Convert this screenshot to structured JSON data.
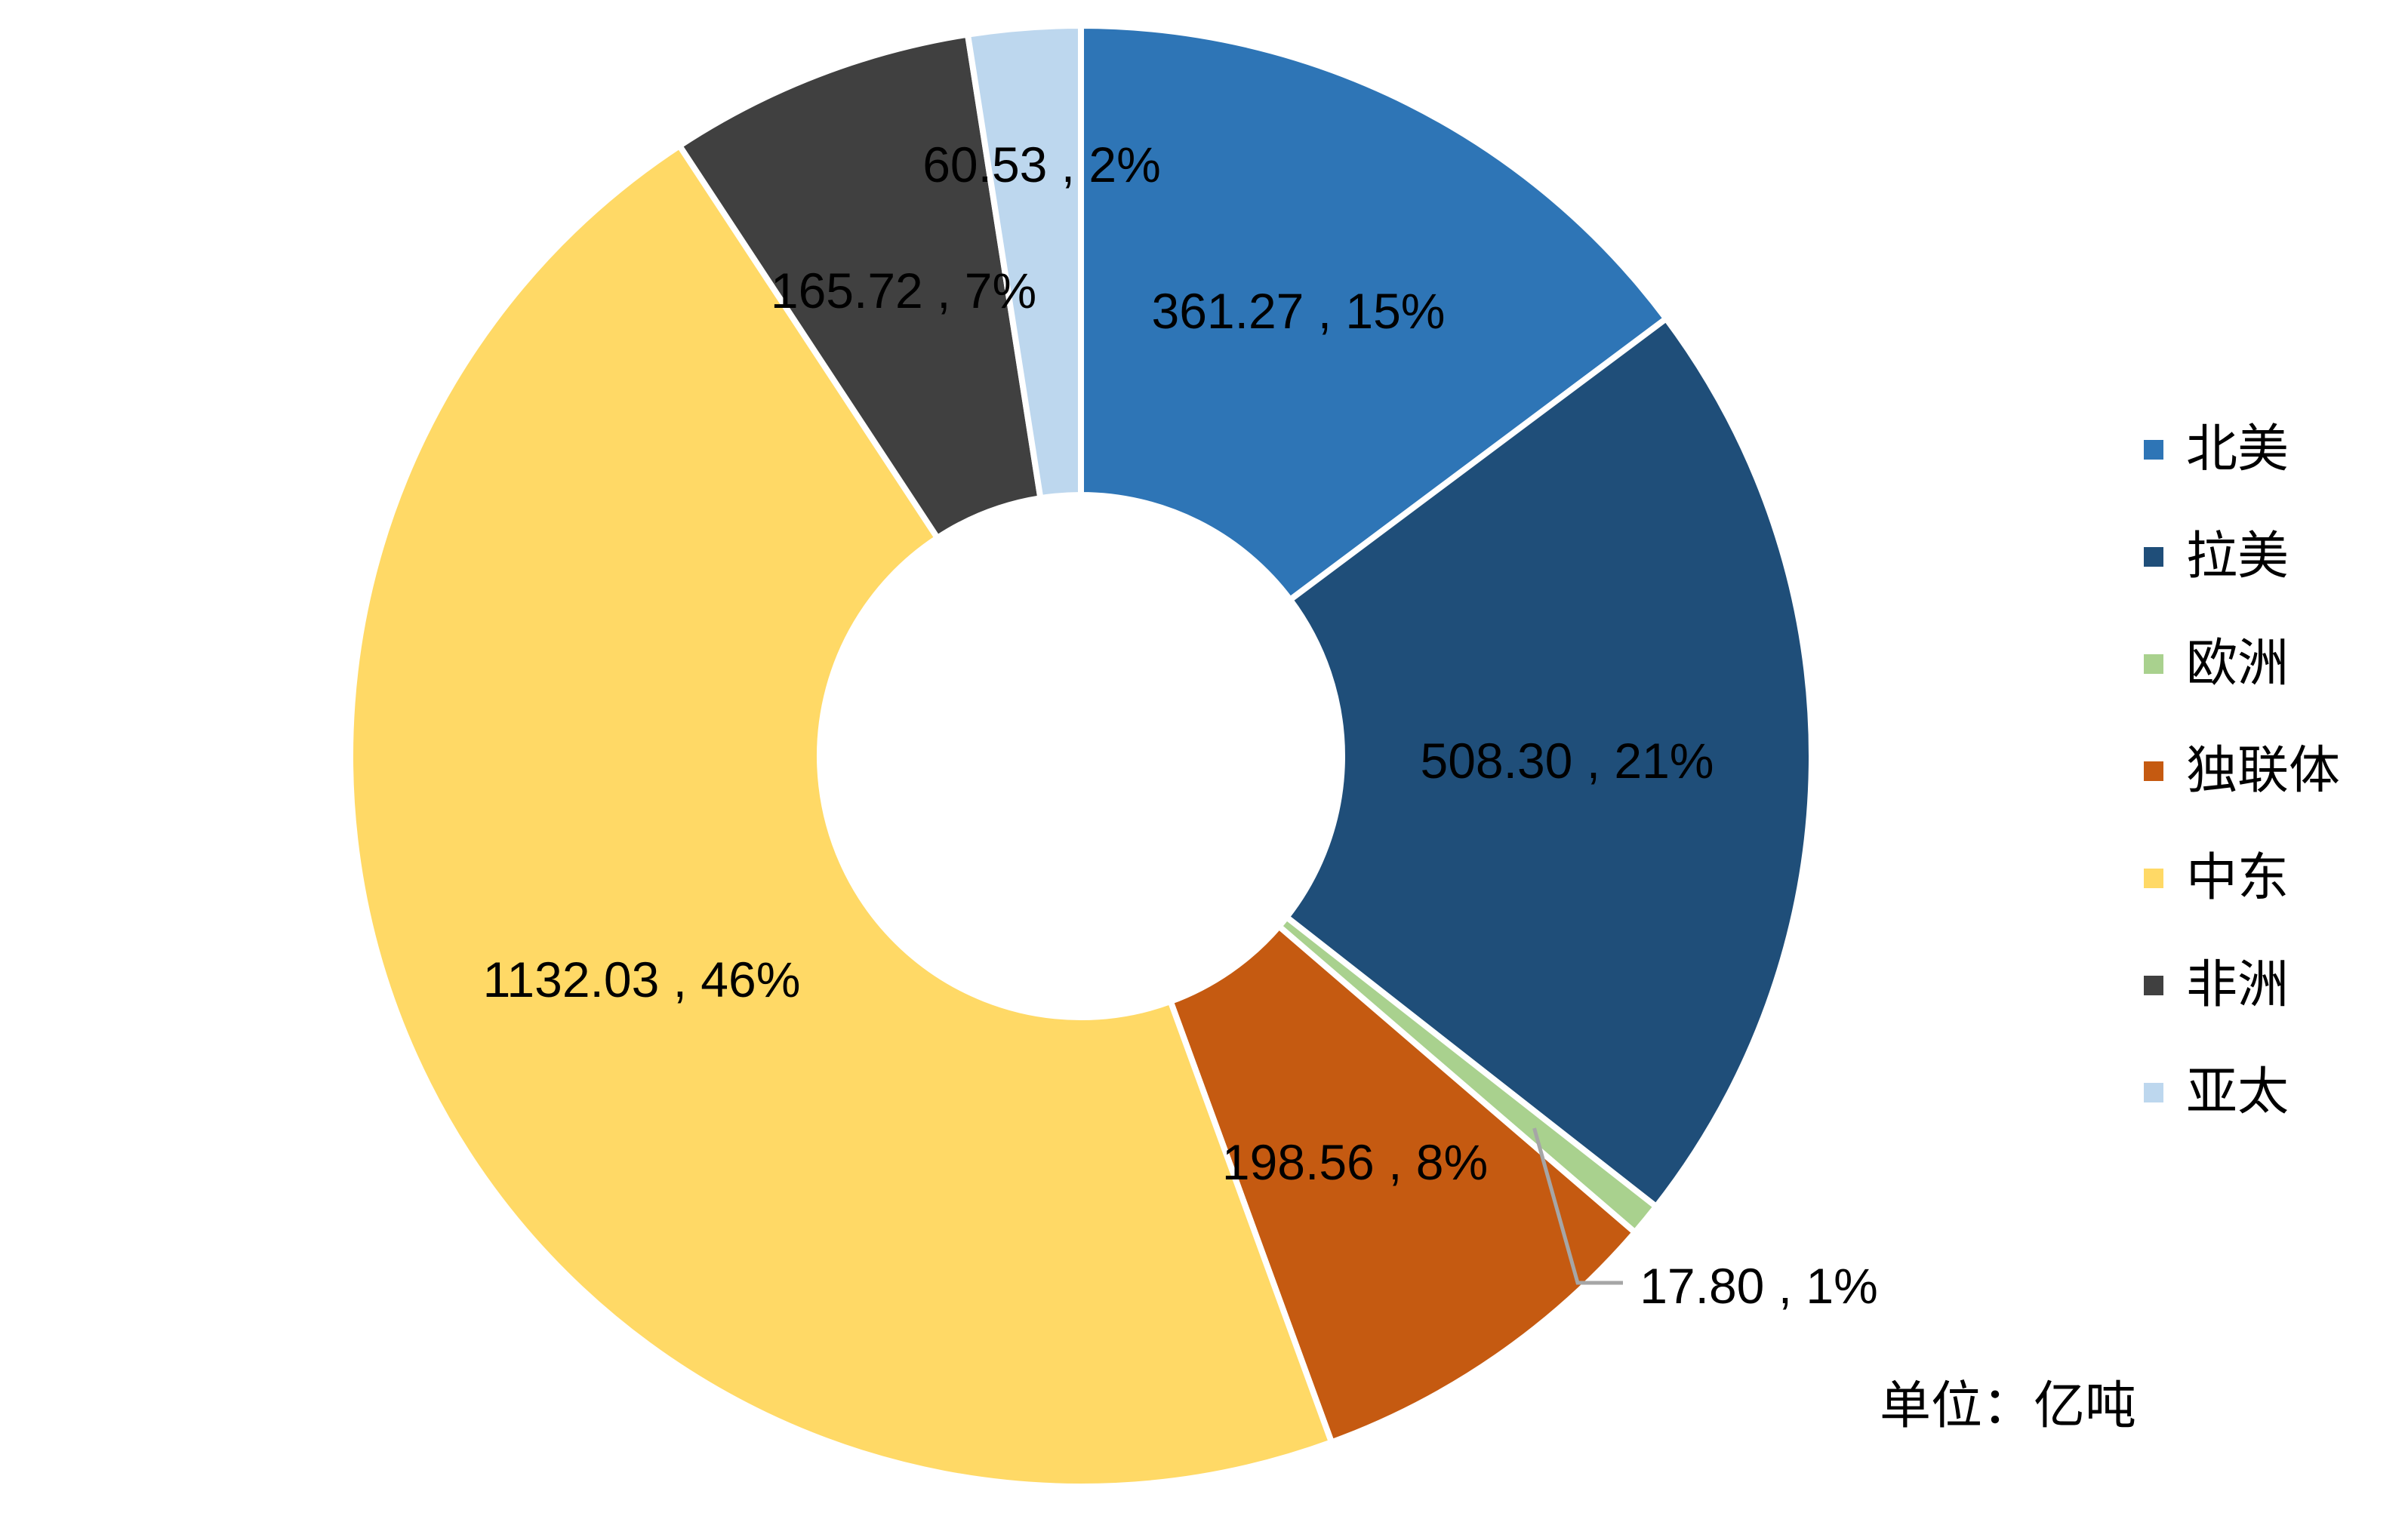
{
  "chart_data": {
    "type": "pie",
    "variant": "donut",
    "title": "",
    "categories": [
      "北美",
      "拉美",
      "欧洲",
      "独联体",
      "中东",
      "非洲",
      "亚太"
    ],
    "values": [
      361.27,
      508.3,
      17.8,
      198.56,
      1132.03,
      165.72,
      60.53
    ],
    "percent_labels": [
      "15%",
      "21%",
      "1%",
      "8%",
      "46%",
      "7%",
      "2%"
    ],
    "data_labels": [
      "361.27 , 15%",
      "508.30 , 21%",
      "17.80 , 1%",
      "198.56 , 8%",
      "1132.03 , 46%",
      "165.72 , 7%",
      "60.53 , 2%"
    ],
    "colors": [
      "#2e75b6",
      "#1f4e79",
      "#a9d18e",
      "#c55a11",
      "#ffd966",
      "#404040",
      "#bdd7ee"
    ],
    "legend_position": "right",
    "unit_note": "单位：亿吨"
  },
  "legend": {
    "items": [
      {
        "label": "北美",
        "color": "#2e75b6"
      },
      {
        "label": "拉美",
        "color": "#1f4e79"
      },
      {
        "label": "欧洲",
        "color": "#a9d18e"
      },
      {
        "label": "独联体",
        "color": "#c55a11"
      },
      {
        "label": "中东",
        "color": "#ffd966"
      },
      {
        "label": "非洲",
        "color": "#404040"
      },
      {
        "label": "亚太",
        "color": "#bdd7ee"
      }
    ]
  }
}
